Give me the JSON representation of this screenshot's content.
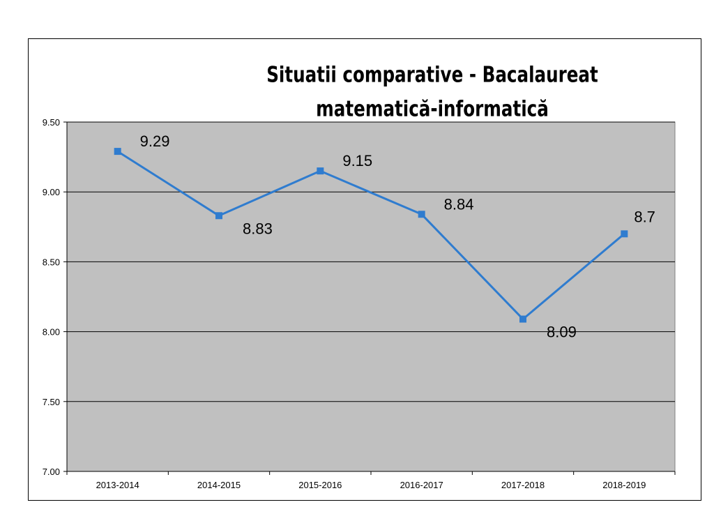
{
  "chart_data": {
    "type": "line",
    "title": "Situatii comparative - Bacalaureat",
    "subtitle": "matematică-informatică",
    "xlabel": "",
    "ylabel": "",
    "categories": [
      "2013-2014",
      "2014-2015",
      "2015-2016",
      "2016-2017",
      "2017-2018",
      "2018-2019"
    ],
    "series": [
      {
        "values": [
          9.29,
          8.83,
          9.15,
          8.84,
          8.09,
          8.7
        ]
      }
    ],
    "data_labels": [
      "9.29",
      "8.83",
      "9.15",
      "8.84",
      "8.09",
      "8.7"
    ],
    "ylim": [
      7.0,
      9.5
    ],
    "yticks": [
      "7.00",
      "7.50",
      "8.00",
      "8.50",
      "9.00",
      "9.50"
    ],
    "grid": true,
    "legend": "none",
    "colors": {
      "line": "#2f7ccf",
      "plot_background": "#c0c0c0",
      "grid": "#000000"
    }
  }
}
